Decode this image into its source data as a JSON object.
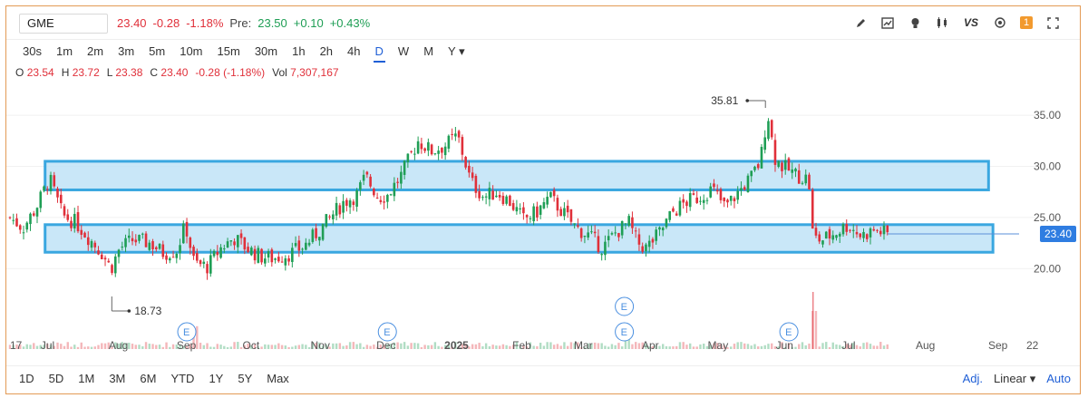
{
  "header": {
    "symbol": "GME",
    "last": "23.40",
    "change": "-0.28",
    "change_pct": "-1.18%",
    "pre_label": "Pre:",
    "pre_price": "23.50",
    "pre_change": "+0.10",
    "pre_change_pct": "+0.43%"
  },
  "toolbar": {
    "icons": [
      "pencil-icon",
      "chart-icon",
      "lightbulb-icon",
      "candles-icon",
      "vs-icon",
      "settings-icon",
      "alert-icon",
      "fullscreen-icon"
    ],
    "vs_label": "VS",
    "alert_count": "1"
  },
  "intervals": [
    "30s",
    "1m",
    "2m",
    "3m",
    "5m",
    "10m",
    "15m",
    "30m",
    "1h",
    "2h",
    "4h",
    "D",
    "W",
    "M",
    "Y ▾"
  ],
  "active_interval": "D",
  "ohlc": {
    "o_label": "O",
    "o": "23.54",
    "h_label": "H",
    "h": "23.72",
    "l_label": "L",
    "l": "23.38",
    "c_label": "C",
    "c": "23.40",
    "chg": "-0.28 (-1.18%)",
    "vol_label": "Vol",
    "vol": "7,307,167"
  },
  "ranges": [
    "1D",
    "5D",
    "1M",
    "3M",
    "6M",
    "YTD",
    "1Y",
    "5Y",
    "Max"
  ],
  "bottom_right": {
    "adj": "Adj.",
    "scale": "Linear ▾",
    "auto": "Auto"
  },
  "colors": {
    "up": "#1f9e55",
    "down": "#e0303a",
    "zone_fill": "#bfe3f7",
    "zone_stroke": "#3aa7e0",
    "price_tag": "#2f7de1",
    "active": "#1f5fd6"
  },
  "chart_data": {
    "type": "candlestick",
    "ylim": [
      15.5,
      37.5
    ],
    "yticks": [
      20.0,
      25.0,
      30.0,
      35.0
    ],
    "ytick_labels": [
      "20.00",
      "25.00",
      "30.00",
      "35.00"
    ],
    "xlim_days": [
      0,
      425
    ],
    "x_ticks": [
      {
        "label": "17",
        "day": 0
      },
      {
        "label": "Jul",
        "day": 14
      },
      {
        "label": "Aug",
        "day": 45
      },
      {
        "label": "Sep",
        "day": 76
      },
      {
        "label": "Oct",
        "day": 106
      },
      {
        "label": "Nov",
        "day": 137
      },
      {
        "label": "Dec",
        "day": 167
      },
      {
        "label": "2025",
        "day": 198
      },
      {
        "label": "Feb",
        "day": 229
      },
      {
        "label": "Mar",
        "day": 257
      },
      {
        "label": "Apr",
        "day": 288
      },
      {
        "label": "May",
        "day": 318
      },
      {
        "label": "Jun",
        "day": 349
      },
      {
        "label": "Jul",
        "day": 379
      },
      {
        "label": "Aug",
        "day": 410
      },
      {
        "label": "Sep",
        "day": 441
      },
      {
        "label": "22",
        "day": 462
      }
    ],
    "last_price": "23.40",
    "last_price_value": 23.4,
    "high_annotation": {
      "label": "35.81",
      "value": 35.81,
      "day": 341
    },
    "low_annotation": {
      "label": "18.73",
      "value": 18.73,
      "day": 46
    },
    "zones": [
      {
        "from_day": 16,
        "to_day": 446,
        "low": 27.7,
        "high": 30.5
      },
      {
        "from_day": 16,
        "to_day": 448,
        "low": 21.6,
        "high": 24.3
      }
    ],
    "earnings_markers": [
      {
        "label": "E",
        "day": 81
      },
      {
        "label": "E",
        "day": 172
      },
      {
        "label": "E",
        "day": 280
      },
      {
        "label": "E",
        "day": 280
      },
      {
        "label": "E",
        "day": 355
      }
    ],
    "price_path": [
      [
        0,
        25.0
      ],
      [
        6,
        24.0
      ],
      [
        12,
        26.0
      ],
      [
        18,
        28.8
      ],
      [
        24,
        25.2
      ],
      [
        30,
        24.5
      ],
      [
        36,
        23.0
      ],
      [
        42,
        21.5
      ],
      [
        46,
        20.0
      ],
      [
        50,
        22.0
      ],
      [
        56,
        22.8
      ],
      [
        64,
        22.5
      ],
      [
        70,
        21.5
      ],
      [
        76,
        21.8
      ],
      [
        80,
        24.3
      ],
      [
        84,
        20.5
      ],
      [
        90,
        20.2
      ],
      [
        96,
        22.0
      ],
      [
        102,
        23.0
      ],
      [
        108,
        22.0
      ],
      [
        114,
        21.2
      ],
      [
        120,
        21.0
      ],
      [
        128,
        21.5
      ],
      [
        134,
        22.2
      ],
      [
        140,
        23.5
      ],
      [
        146,
        25.0
      ],
      [
        152,
        26.5
      ],
      [
        158,
        27.2
      ],
      [
        162,
        29.0
      ],
      [
        168,
        27.0
      ],
      [
        172,
        27.2
      ],
      [
        178,
        29.0
      ],
      [
        186,
        32.5
      ],
      [
        192,
        31.5
      ],
      [
        198,
        32.0
      ],
      [
        204,
        33.0
      ],
      [
        210,
        28.5
      ],
      [
        216,
        27.0
      ],
      [
        222,
        27.5
      ],
      [
        228,
        26.5
      ],
      [
        234,
        24.8
      ],
      [
        240,
        25.5
      ],
      [
        246,
        27.0
      ],
      [
        252,
        25.5
      ],
      [
        258,
        24.0
      ],
      [
        264,
        23.2
      ],
      [
        270,
        22.0
      ],
      [
        276,
        23.5
      ],
      [
        282,
        24.5
      ],
      [
        286,
        22.5
      ],
      [
        290,
        22.0
      ],
      [
        296,
        23.5
      ],
      [
        302,
        25.5
      ],
      [
        308,
        26.5
      ],
      [
        314,
        27.0
      ],
      [
        320,
        27.8
      ],
      [
        326,
        26.0
      ],
      [
        332,
        27.5
      ],
      [
        338,
        29.0
      ],
      [
        342,
        30.5
      ],
      [
        344,
        33.5
      ],
      [
        346,
        35.2
      ],
      [
        348,
        31.0
      ],
      [
        352,
        30.0
      ],
      [
        356,
        29.5
      ],
      [
        360,
        29.0
      ],
      [
        364,
        28.8
      ],
      [
        366,
        23.0
      ],
      [
        370,
        22.8
      ],
      [
        376,
        23.5
      ],
      [
        382,
        24.3
      ],
      [
        388,
        23.2
      ],
      [
        394,
        23.8
      ],
      [
        400,
        23.4
      ]
    ],
    "volume_spikes": [
      {
        "day": 84,
        "v": 1.8
      },
      {
        "day": 282,
        "v": 1.6
      },
      {
        "day": 366,
        "v": 3.0
      }
    ]
  }
}
